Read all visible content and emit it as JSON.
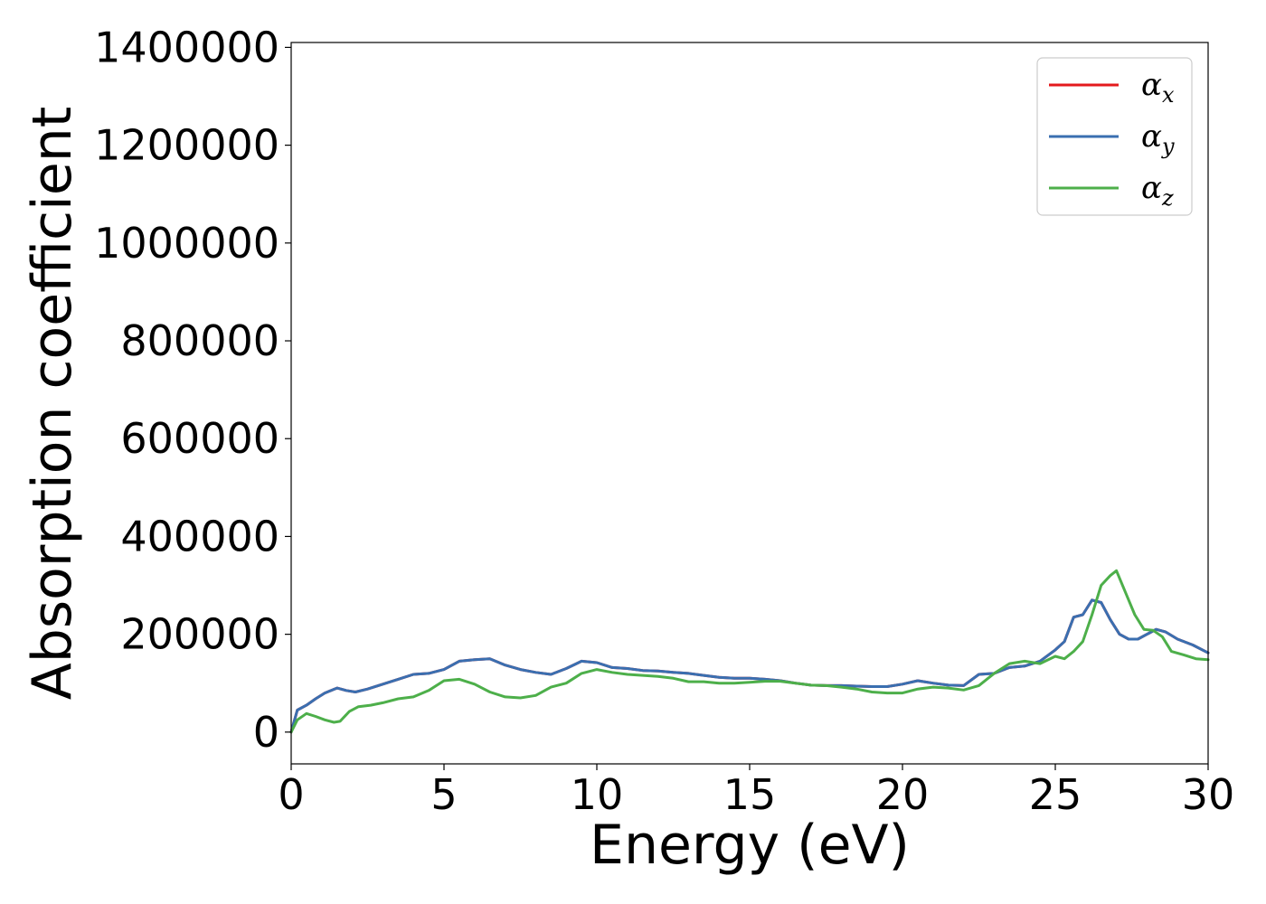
{
  "chart_data": {
    "type": "line",
    "xlabel": "Energy (eV)",
    "ylabel": "Absorption coefficient",
    "xlim": [
      0,
      30
    ],
    "ylim": [
      -65000,
      1410000
    ],
    "xticks": [
      0,
      5,
      10,
      15,
      20,
      25,
      30
    ],
    "xtick_labels": [
      "0",
      "5",
      "10",
      "15",
      "20",
      "25",
      "30"
    ],
    "yticks": [
      0,
      200000,
      400000,
      600000,
      800000,
      1000000,
      1200000,
      1400000
    ],
    "ytick_labels": [
      "0",
      "200000",
      "400000",
      "600000",
      "800000",
      "1000000",
      "1200000",
      "1400000"
    ],
    "grid": false,
    "legend_position": "top-right",
    "series": [
      {
        "name": "α_x",
        "label_main": "α",
        "label_sub": "x",
        "color": "#e41a1c",
        "x": [
          0,
          0.2,
          0.5,
          0.8,
          1.1,
          1.5,
          1.8,
          2.1,
          2.5,
          3.0,
          3.5,
          4.0,
          4.5,
          5.0,
          5.5,
          6.0,
          6.5,
          7.0,
          7.5,
          8.0,
          8.5,
          9.0,
          9.5,
          10.0,
          10.5,
          11.0,
          11.5,
          12.0,
          12.5,
          13.0,
          13.5,
          14.0,
          14.5,
          15.0,
          15.5,
          16.0,
          16.5,
          17.0,
          17.5,
          18.0,
          18.5,
          19.0,
          19.5,
          20.0,
          20.5,
          21.0,
          21.5,
          22.0,
          22.5,
          23.0,
          23.5,
          24.0,
          24.5,
          25.0,
          25.3,
          25.6,
          25.9,
          26.2,
          26.5,
          26.8,
          27.1,
          27.4,
          27.7,
          28.0,
          28.3,
          28.6,
          29.0,
          29.5,
          30.0
        ],
        "y": [
          0,
          45000,
          55000,
          68000,
          80000,
          90000,
          85000,
          82000,
          88000,
          98000,
          108000,
          118000,
          120000,
          128000,
          145000,
          148000,
          150000,
          137000,
          128000,
          122000,
          118000,
          130000,
          145000,
          142000,
          132000,
          130000,
          126000,
          125000,
          122000,
          120000,
          116000,
          112000,
          110000,
          110000,
          108000,
          105000,
          100000,
          96000,
          95000,
          95000,
          94000,
          93000,
          93000,
          98000,
          105000,
          100000,
          96000,
          95000,
          118000,
          120000,
          132000,
          135000,
          145000,
          168000,
          185000,
          235000,
          240000,
          270000,
          265000,
          230000,
          200000,
          190000,
          190000,
          200000,
          210000,
          205000,
          190000,
          178000,
          162000
        ]
      },
      {
        "name": "α_y",
        "label_main": "α",
        "label_sub": "y",
        "color": "#3a6fb0",
        "x": [
          0,
          0.2,
          0.5,
          0.8,
          1.1,
          1.5,
          1.8,
          2.1,
          2.5,
          3.0,
          3.5,
          4.0,
          4.5,
          5.0,
          5.5,
          6.0,
          6.5,
          7.0,
          7.5,
          8.0,
          8.5,
          9.0,
          9.5,
          10.0,
          10.5,
          11.0,
          11.5,
          12.0,
          12.5,
          13.0,
          13.5,
          14.0,
          14.5,
          15.0,
          15.5,
          16.0,
          16.5,
          17.0,
          17.5,
          18.0,
          18.5,
          19.0,
          19.5,
          20.0,
          20.5,
          21.0,
          21.5,
          22.0,
          22.5,
          23.0,
          23.5,
          24.0,
          24.5,
          25.0,
          25.3,
          25.6,
          25.9,
          26.2,
          26.5,
          26.8,
          27.1,
          27.4,
          27.7,
          28.0,
          28.3,
          28.6,
          29.0,
          29.5,
          30.0
        ],
        "y": [
          0,
          45000,
          55000,
          68000,
          80000,
          90000,
          85000,
          82000,
          88000,
          98000,
          108000,
          118000,
          120000,
          128000,
          145000,
          148000,
          150000,
          137000,
          128000,
          122000,
          118000,
          130000,
          145000,
          142000,
          132000,
          130000,
          126000,
          125000,
          122000,
          120000,
          116000,
          112000,
          110000,
          110000,
          108000,
          105000,
          100000,
          96000,
          95000,
          95000,
          94000,
          93000,
          93000,
          98000,
          105000,
          100000,
          96000,
          95000,
          118000,
          120000,
          132000,
          135000,
          145000,
          168000,
          185000,
          235000,
          240000,
          270000,
          265000,
          230000,
          200000,
          190000,
          190000,
          200000,
          210000,
          205000,
          190000,
          178000,
          162000
        ]
      },
      {
        "name": "α_z",
        "label_main": "α",
        "label_sub": "z",
        "color": "#4daf4a",
        "x": [
          0,
          0.2,
          0.5,
          0.8,
          1.1,
          1.4,
          1.6,
          1.9,
          2.2,
          2.6,
          3.0,
          3.5,
          4.0,
          4.5,
          5.0,
          5.5,
          6.0,
          6.5,
          7.0,
          7.5,
          8.0,
          8.5,
          9.0,
          9.5,
          10.0,
          10.5,
          11.0,
          11.5,
          12.0,
          12.5,
          13.0,
          13.5,
          14.0,
          14.5,
          15.0,
          15.5,
          16.0,
          16.5,
          17.0,
          17.5,
          18.0,
          18.5,
          19.0,
          19.5,
          20.0,
          20.5,
          21.0,
          21.5,
          22.0,
          22.5,
          23.0,
          23.5,
          24.0,
          24.5,
          25.0,
          25.3,
          25.6,
          25.9,
          26.2,
          26.5,
          26.8,
          27.0,
          27.3,
          27.6,
          27.9,
          28.2,
          28.5,
          28.8,
          29.2,
          29.6,
          30.0
        ],
        "y": [
          0,
          25000,
          38000,
          32000,
          25000,
          20000,
          22000,
          42000,
          52000,
          55000,
          60000,
          68000,
          72000,
          85000,
          105000,
          108000,
          98000,
          82000,
          72000,
          70000,
          75000,
          92000,
          100000,
          120000,
          128000,
          122000,
          118000,
          116000,
          114000,
          110000,
          103000,
          103000,
          100000,
          100000,
          102000,
          104000,
          104000,
          100000,
          96000,
          95000,
          92000,
          88000,
          82000,
          80000,
          80000,
          88000,
          92000,
          90000,
          86000,
          95000,
          120000,
          140000,
          145000,
          140000,
          155000,
          150000,
          165000,
          185000,
          240000,
          300000,
          320000,
          330000,
          285000,
          240000,
          210000,
          208000,
          195000,
          165000,
          158000,
          150000,
          148000
        ]
      }
    ]
  }
}
